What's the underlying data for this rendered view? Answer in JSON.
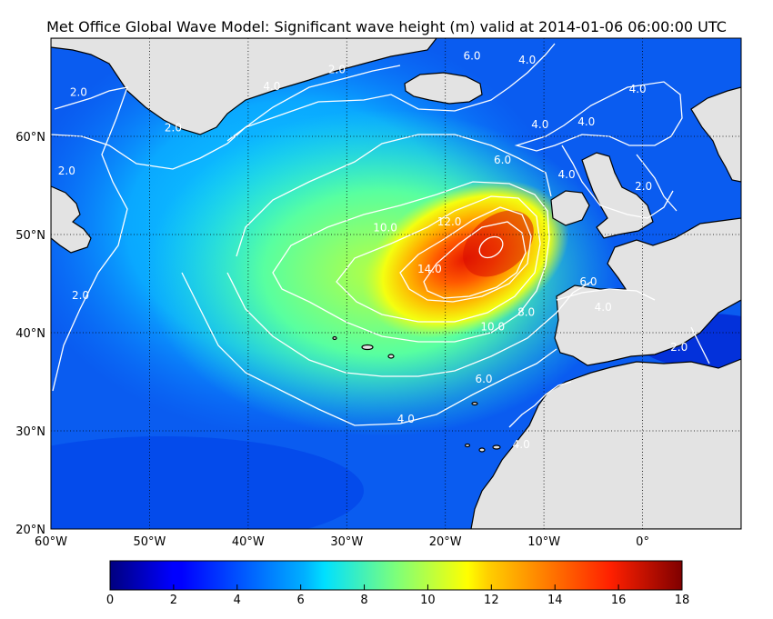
{
  "title": "Met Office Global Wave Model: Significant wave height (m) valid at 2014-01-06 06:00:00 UTC",
  "map": {
    "lon_ticks": [
      {
        "value": -60,
        "label": "60°W"
      },
      {
        "value": -50,
        "label": "50°W"
      },
      {
        "value": -40,
        "label": "40°W"
      },
      {
        "value": -30,
        "label": "30°W"
      },
      {
        "value": -20,
        "label": "20°W"
      },
      {
        "value": -10,
        "label": "10°W"
      },
      {
        "value": 0,
        "label": "0°"
      }
    ],
    "lat_ticks": [
      {
        "value": 20,
        "label": "20°N"
      },
      {
        "value": 30,
        "label": "30°N"
      },
      {
        "value": 40,
        "label": "40°N"
      },
      {
        "value": 50,
        "label": "50°N"
      },
      {
        "value": 60,
        "label": "60°N"
      }
    ],
    "contour_labels": [
      {
        "text": "2.0",
        "lon": -57.2,
        "lat": 64.5
      },
      {
        "text": "2.0",
        "lon": -47.6,
        "lat": 60.9
      },
      {
        "text": "2.0",
        "lon": -58.4,
        "lat": 56.5
      },
      {
        "text": "2.0",
        "lon": -57.0,
        "lat": 43.8
      },
      {
        "text": "2.0",
        "lon": -31.0,
        "lat": 66.8
      },
      {
        "text": "4.0",
        "lon": -37.6,
        "lat": 65.1
      },
      {
        "text": "6.0",
        "lon": -17.3,
        "lat": 68.2
      },
      {
        "text": "4.0",
        "lon": -11.7,
        "lat": 67.8
      },
      {
        "text": "4.0",
        "lon": -0.5,
        "lat": 64.8
      },
      {
        "text": "4.0",
        "lon": -10.4,
        "lat": 61.2
      },
      {
        "text": "4.0",
        "lon": -5.7,
        "lat": 61.5
      },
      {
        "text": "4.0",
        "lon": -7.7,
        "lat": 56.1
      },
      {
        "text": "2.0",
        "lon": 0.1,
        "lat": 54.9
      },
      {
        "text": "6.0",
        "lon": -14.2,
        "lat": 57.6
      },
      {
        "text": "10.0",
        "lon": -26.1,
        "lat": 50.7
      },
      {
        "text": "12.0",
        "lon": -19.6,
        "lat": 51.3
      },
      {
        "text": "14.0",
        "lon": -21.6,
        "lat": 46.5
      },
      {
        "text": "6.0",
        "lon": -5.5,
        "lat": 45.2
      },
      {
        "text": "4.0",
        "lon": -4.0,
        "lat": 42.6
      },
      {
        "text": "8.0",
        "lon": -11.8,
        "lat": 42.1
      },
      {
        "text": "10.0",
        "lon": -15.2,
        "lat": 40.6
      },
      {
        "text": "6.0",
        "lon": -16.1,
        "lat": 35.3
      },
      {
        "text": "2.0",
        "lon": 3.7,
        "lat": 38.5
      },
      {
        "text": "4.0",
        "lon": -24.0,
        "lat": 31.2
      },
      {
        "text": "4.0",
        "lon": -12.3,
        "lat": 28.6
      }
    ]
  },
  "colorbar": {
    "min": 0,
    "max": 18,
    "ticks": [
      "0",
      "2",
      "4",
      "6",
      "8",
      "10",
      "12",
      "14",
      "16",
      "18"
    ]
  },
  "colors": {
    "land": "#e3e3e3",
    "coastline": "#000000",
    "contour": "#ffffff",
    "gridline": "#000000"
  }
}
